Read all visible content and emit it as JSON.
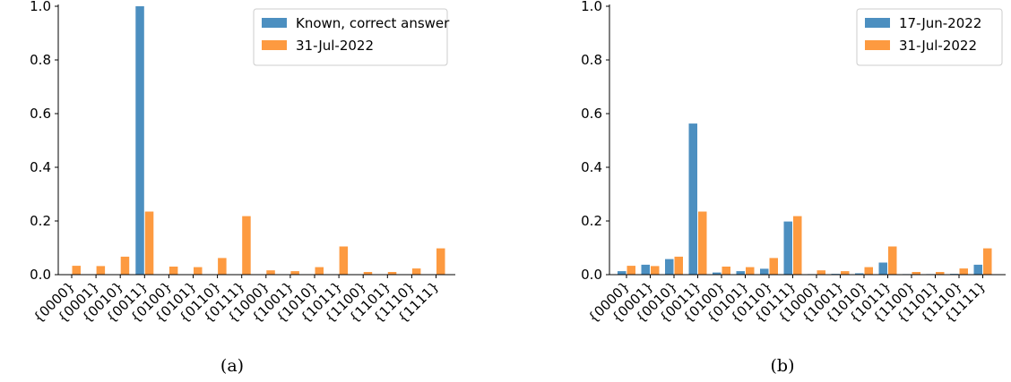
{
  "chart_data": [
    {
      "type": "bar",
      "caption": "(a)",
      "categories": [
        "{0000}",
        "{0001}",
        "{0010}",
        "{0011}",
        "{0100}",
        "{0101}",
        "{0110}",
        "{0111}",
        "{1000}",
        "{1001}",
        "{1010}",
        "{1011}",
        "{1100}",
        "{1101}",
        "{1110}",
        "{1111}"
      ],
      "series": [
        {
          "name": "Known, correct answer",
          "color": "#4c8fc0",
          "values": [
            0,
            0,
            0,
            1.0,
            0,
            0,
            0,
            0,
            0,
            0,
            0,
            0,
            0,
            0,
            0,
            0
          ]
        },
        {
          "name": "31-Jul-2022",
          "color": "#fd9a40",
          "values": [
            0.033,
            0.032,
            0.067,
            0.235,
            0.03,
            0.028,
            0.062,
            0.218,
            0.016,
            0.013,
            0.028,
            0.105,
            0.01,
            0.01,
            0.023,
            0.098
          ]
        }
      ],
      "ylim": [
        0,
        1.0
      ],
      "yticks": [
        "0.0",
        "0.2",
        "0.4",
        "0.6",
        "0.8",
        "1.0"
      ],
      "legend": "top-right"
    },
    {
      "type": "bar",
      "caption": "(b)",
      "categories": [
        "{0000}",
        "{0001}",
        "{0010}",
        "{0011}",
        "{0100}",
        "{0101}",
        "{0110}",
        "{0111}",
        "{1000}",
        "{1001}",
        "{1010}",
        "{1011}",
        "{1100}",
        "{1101}",
        "{1110}",
        "{1111}"
      ],
      "series": [
        {
          "name": "17-Jun-2022",
          "color": "#4c8fc0",
          "values": [
            0.013,
            0.037,
            0.058,
            0.563,
            0.008,
            0.013,
            0.022,
            0.198,
            0.002,
            0.003,
            0.005,
            0.045,
            0.002,
            0.002,
            0.003,
            0.037
          ]
        },
        {
          "name": "31-Jul-2022",
          "color": "#fd9a40",
          "values": [
            0.033,
            0.032,
            0.067,
            0.235,
            0.03,
            0.028,
            0.062,
            0.218,
            0.016,
            0.013,
            0.028,
            0.105,
            0.01,
            0.01,
            0.023,
            0.098
          ]
        }
      ],
      "ylim": [
        0,
        1.0
      ],
      "yticks": [
        "0.0",
        "0.2",
        "0.4",
        "0.6",
        "0.8",
        "1.0"
      ],
      "legend": "top-right"
    }
  ]
}
